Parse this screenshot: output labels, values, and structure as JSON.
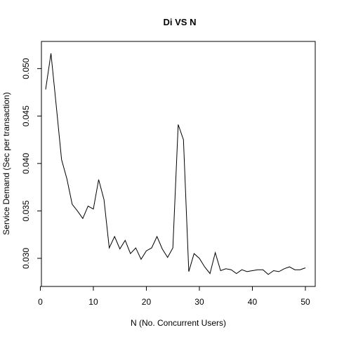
{
  "chart_data": {
    "type": "line",
    "title": "Di VS N",
    "xlabel": "N (No. Concurrent Users)",
    "ylabel": "Service Demand (Sec per transaction)",
    "xlim": [
      1,
      50
    ],
    "ylim": [
      0.028,
      0.0519
    ],
    "xticks": [
      0,
      10,
      20,
      30,
      40,
      50
    ],
    "yticks": [
      0.03,
      0.035,
      0.04,
      0.045,
      0.05
    ],
    "xtick_labels": [
      "0",
      "10",
      "20",
      "30",
      "40",
      "50"
    ],
    "ytick_labels": [
      "0.030",
      "0.035",
      "0.040",
      "0.045",
      "0.050"
    ],
    "grid": false,
    "legend": false,
    "series": [
      {
        "color": "#000000",
        "x": [
          1,
          2,
          3,
          4,
          5,
          6,
          7,
          8,
          9,
          10,
          11,
          12,
          13,
          14,
          15,
          16,
          17,
          18,
          19,
          20,
          21,
          22,
          23,
          24,
          25,
          26,
          27,
          28,
          29,
          30,
          31,
          32,
          33,
          34,
          35,
          36,
          37,
          38,
          39,
          40,
          41,
          42,
          43,
          44,
          45,
          46,
          47,
          48,
          49,
          50
        ],
        "y": [
          0.0478,
          0.0516,
          0.0461,
          0.0404,
          0.0384,
          0.0357,
          0.035,
          0.0342,
          0.0355,
          0.0352,
          0.0383,
          0.0362,
          0.0311,
          0.0323,
          0.031,
          0.0319,
          0.0305,
          0.0311,
          0.0299,
          0.0308,
          0.0311,
          0.0323,
          0.031,
          0.0301,
          0.0311,
          0.0441,
          0.0425,
          0.0286,
          0.0305,
          0.03,
          0.0291,
          0.0284,
          0.0306,
          0.0287,
          0.0289,
          0.0288,
          0.0284,
          0.0288,
          0.0286,
          0.0287,
          0.0288,
          0.0288,
          0.0283,
          0.0287,
          0.0286,
          0.0289,
          0.0291,
          0.0288,
          0.0288,
          0.029
        ]
      }
    ]
  }
}
